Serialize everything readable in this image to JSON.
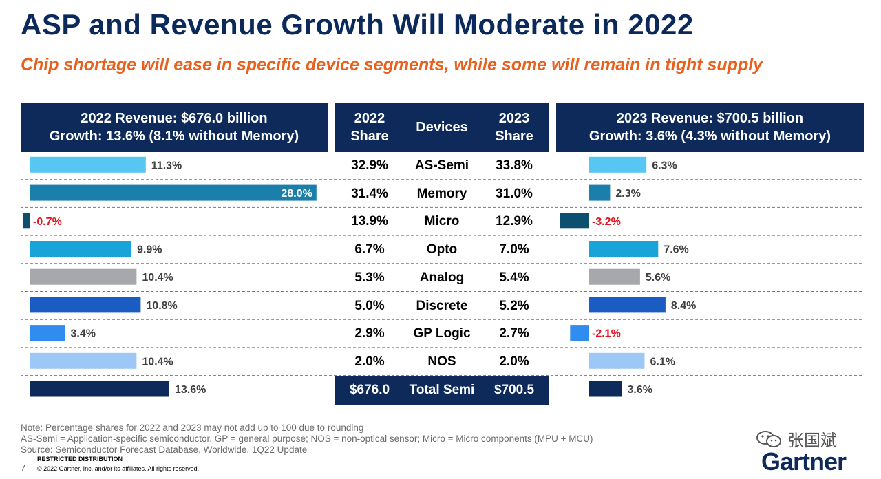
{
  "title": "ASP and Revenue Growth Will Moderate in 2022",
  "subtitle": "Chip shortage will ease in specific device segments, while some will remain in tight supply",
  "left_header": {
    "line1": "2022 Revenue: $676.0 billion",
    "line2": "Growth: 13.6% (8.1% without Memory)"
  },
  "mid_header": {
    "share_2022": [
      "2022",
      "Share"
    ],
    "devices": "Devices",
    "share_2023": [
      "2023",
      "Share"
    ]
  },
  "right_header": {
    "line1": "2023 Revenue: $700.5 billion",
    "line2": "Growth: 3.6% (4.3% without Memory)"
  },
  "rows": [
    {
      "device": "AS-Semi",
      "share_2022": "32.9%",
      "share_2023": "33.8%"
    },
    {
      "device": "Memory",
      "share_2022": "31.4%",
      "share_2023": "31.0%"
    },
    {
      "device": "Micro",
      "share_2022": "13.9%",
      "share_2023": "12.9%"
    },
    {
      "device": "Opto",
      "share_2022": "6.7%",
      "share_2023": "7.0%"
    },
    {
      "device": "Analog",
      "share_2022": "5.3%",
      "share_2023": "5.4%"
    },
    {
      "device": "Discrete",
      "share_2022": "5.0%",
      "share_2023": "5.2%"
    },
    {
      "device": "GP Logic",
      "share_2022": "2.9%",
      "share_2023": "2.7%"
    },
    {
      "device": "NOS",
      "share_2022": "2.0%",
      "share_2023": "2.0%"
    }
  ],
  "total_row": {
    "device": "Total Semi",
    "value_2022": "$676.0",
    "value_2023": "$700.5"
  },
  "chart_data": [
    {
      "type": "bar",
      "orientation": "horizontal",
      "categories": [
        "AS-Semi",
        "Memory",
        "Micro",
        "Opto",
        "Analog",
        "Discrete",
        "GP Logic",
        "NOS",
        "Total Semi"
      ],
      "values": [
        11.3,
        28.0,
        -0.7,
        9.9,
        10.4,
        10.8,
        3.4,
        10.4,
        13.6
      ],
      "labels": [
        "11.3%",
        "28.0%",
        "-0.7%",
        "9.9%",
        "10.4%",
        "10.8%",
        "3.4%",
        "10.4%",
        "13.6%"
      ],
      "title": "2022 Revenue: $676.0 billion"
    },
    {
      "type": "bar",
      "orientation": "horizontal",
      "categories": [
        "AS-Semi",
        "Memory",
        "Micro",
        "Opto",
        "Analog",
        "Discrete",
        "GP Logic",
        "NOS",
        "Total Semi"
      ],
      "values": [
        6.3,
        2.3,
        -3.2,
        7.6,
        5.6,
        8.4,
        -2.1,
        6.1,
        3.6
      ],
      "labels": [
        "6.3%",
        "2.3%",
        "-3.2%",
        "7.6%",
        "5.6%",
        "8.4%",
        "-2.1%",
        "6.1%",
        "3.6%"
      ],
      "title": "2023 Revenue: $700.5 billion"
    }
  ],
  "colors": {
    "navy": "#0e2a5a",
    "title": "#0b2a5b",
    "subtitle": "#e8601c",
    "negative_label": "#e0151f",
    "bars": [
      "#56c7f3",
      "#1a7fab",
      "#0d4f6e",
      "#18a3d9",
      "#a6a8ab",
      "#1a5cc1",
      "#2f8df0",
      "#9dc8f5",
      "#0e2a5a"
    ]
  },
  "notes": [
    "Note: Percentage shares for 2022 and 2023 may not add up to 100 due to rounding",
    "AS-Semi = Application-specific semiconductor, GP = general purpose; NOS = non-optical sensor; Micro = Micro components (MPU + MCU)",
    "Source: Semiconductor Forecast Database, Worldwide, 1Q22 Update"
  ],
  "restricted": "RESTRICTED DISTRIBUTION",
  "copyright": "© 2022 Gartner, Inc. and/or its affiliates. All rights reserved.",
  "page_number": "7",
  "watermark": "张国斌",
  "logo": "Gartner",
  "icons": {
    "watermark": "wechat-icon"
  }
}
